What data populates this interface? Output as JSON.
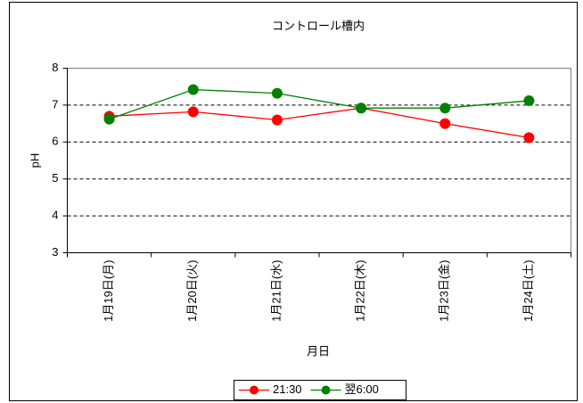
{
  "chart_data": {
    "type": "line",
    "title": "コントロール槽内",
    "x_label": "月日",
    "y_label": "pH",
    "categories": [
      "1月19日(月)",
      "1月20日(火)",
      "1月21日(水)",
      "1月22日(木)",
      "1月23日(金)",
      "1月24日(土)"
    ],
    "series": [
      {
        "name": "21:30",
        "color": "#ff0000",
        "values": [
          6.7,
          6.82,
          6.6,
          6.92,
          6.5,
          6.12
        ]
      },
      {
        "name": "翌6:00",
        "color": "#008000",
        "values": [
          6.62,
          7.42,
          7.32,
          6.92,
          6.92,
          7.12
        ]
      }
    ],
    "ylim": [
      3,
      8
    ],
    "yticks": [
      3,
      4,
      5,
      6,
      7,
      8
    ],
    "grid": true,
    "legend": "bottom"
  }
}
